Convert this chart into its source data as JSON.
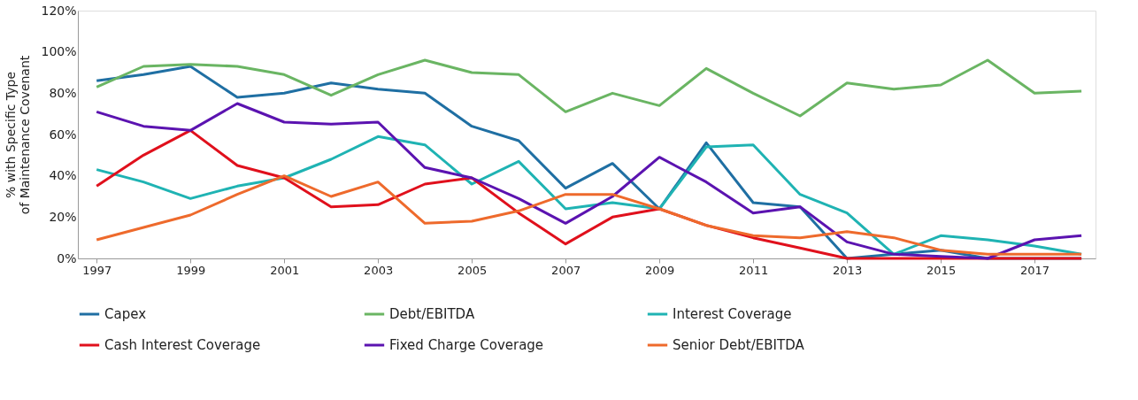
{
  "chart_data": {
    "type": "line",
    "ylabel": "% with Specific Type\nof Maintenance Covenant",
    "x": [
      1997,
      1998,
      1999,
      2000,
      2001,
      2002,
      2003,
      2004,
      2005,
      2006,
      2007,
      2008,
      2009,
      2010,
      2011,
      2012,
      2013,
      2014,
      2015,
      2016,
      2017,
      2018
    ],
    "series": [
      {
        "name": "Capex",
        "color": "#1f6fa3",
        "values": [
          86,
          89,
          93,
          78,
          80,
          85,
          82,
          80,
          64,
          57,
          34,
          46,
          24,
          56,
          27,
          25,
          0,
          2,
          4,
          0,
          0,
          0
        ]
      },
      {
        "name": "Debt/EBITDA",
        "color": "#6ab563",
        "values": [
          83,
          93,
          94,
          93,
          89,
          79,
          89,
          96,
          90,
          89,
          71,
          80,
          74,
          92,
          80,
          69,
          85,
          82,
          84,
          96,
          80,
          81
        ]
      },
      {
        "name": "Interest Coverage",
        "color": "#1fb3b3",
        "values": [
          43,
          37,
          29,
          35,
          39,
          48,
          59,
          55,
          36,
          47,
          24,
          27,
          24,
          54,
          55,
          31,
          22,
          2,
          11,
          9,
          6,
          2
        ]
      },
      {
        "name": "Cash Interest Coverage",
        "color": "#e0101c",
        "values": [
          35,
          50,
          62,
          45,
          39,
          25,
          26,
          36,
          39,
          22,
          7,
          20,
          24,
          16,
          10,
          5,
          0,
          0,
          0,
          0,
          0,
          0
        ]
      },
      {
        "name": "Fixed Charge Coverage",
        "color": "#5b13b0",
        "values": [
          71,
          64,
          62,
          75,
          66,
          65,
          66,
          44,
          39,
          29,
          17,
          30,
          49,
          37,
          22,
          25,
          8,
          2,
          1,
          0,
          9,
          11
        ]
      },
      {
        "name": "Senior Debt/EBITDA",
        "color": "#ee6a2c",
        "values": [
          9,
          15,
          21,
          31,
          40,
          30,
          37,
          17,
          18,
          23,
          31,
          31,
          24,
          16,
          11,
          10,
          13,
          10,
          4,
          2,
          2,
          2
        ]
      }
    ],
    "xlim": [
      1996.6,
      2018.3
    ],
    "xticks": [
      1997,
      1999,
      2001,
      2003,
      2005,
      2007,
      2009,
      2011,
      2013,
      2015,
      2017
    ],
    "ylim": [
      0,
      120
    ],
    "yticks": [
      {
        "value": 0,
        "label": "0%"
      },
      {
        "value": 20,
        "label": "20%"
      },
      {
        "value": 40,
        "label": "40%"
      },
      {
        "value": 60,
        "label": "60%"
      },
      {
        "value": 80,
        "label": "80%"
      },
      {
        "value": 100,
        "label": "100%"
      },
      {
        "value": 120,
        "label": "120%"
      }
    ],
    "grid": false,
    "legend": "bottom",
    "marker": "none",
    "line_style": "solid"
  }
}
